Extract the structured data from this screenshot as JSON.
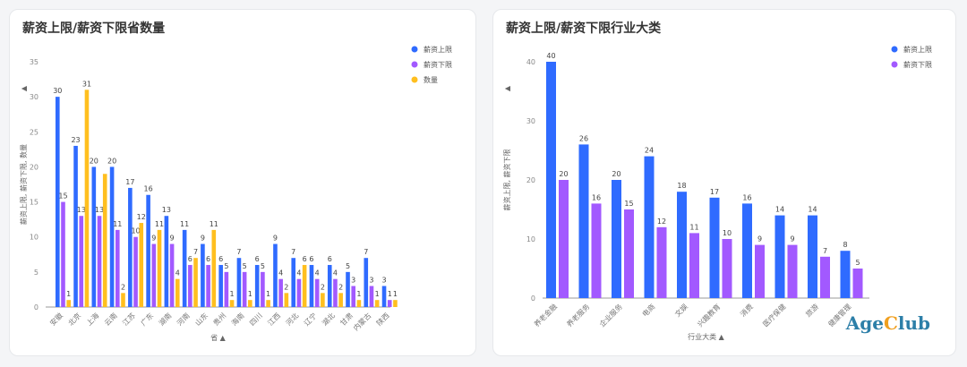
{
  "chart_data": [
    {
      "type": "bar",
      "title": "薪资上限/薪资下限省数量",
      "xlabel": "省",
      "ylabel": "薪资上限, 薪资下限, 数量",
      "ylim": [
        0,
        35
      ],
      "yticks": [
        0,
        5,
        10,
        15,
        20,
        25,
        30,
        35
      ],
      "legend": "top-right",
      "categories": [
        "安徽",
        "北京",
        "上海",
        "云南",
        "江苏",
        "广东",
        "湖南",
        "河南",
        "山东",
        "贵州",
        "海南",
        "四川",
        "江西",
        "河北",
        "辽宁",
        "湖北",
        "甘肃",
        "内蒙古",
        "陕西"
      ],
      "series": [
        {
          "name": "薪资上限",
          "color": "#2f6bff",
          "values": [
            30,
            23,
            20,
            20,
            17,
            16,
            13,
            11,
            9,
            6,
            7,
            6,
            9,
            7,
            6,
            6,
            5,
            7,
            3
          ]
        },
        {
          "name": "薪资下限",
          "color": "#a259ff",
          "values": [
            15,
            13,
            13,
            11,
            10,
            9,
            9,
            6,
            6,
            5,
            5,
            5,
            4,
            4,
            4,
            4,
            3,
            3,
            1
          ]
        },
        {
          "name": "数量",
          "color": "#ffbf1f",
          "values": [
            1,
            31,
            19,
            2,
            12,
            11,
            4,
            7,
            11,
            1,
            1,
            1,
            2,
            6,
            2,
            2,
            1,
            1,
            1
          ]
        }
      ],
      "label_values": {
        "薪资上限": [
          30,
          23,
          20,
          20,
          17,
          16,
          13,
          11,
          9,
          6,
          7,
          6,
          9,
          7,
          6,
          6,
          5,
          7,
          3
        ],
        "薪资下限": [
          15,
          13,
          13,
          11,
          10,
          9,
          9,
          6,
          6,
          5,
          5,
          5,
          4,
          4,
          4,
          4,
          3,
          3,
          1
        ],
        "数量": [
          1,
          31,
          null,
          2,
          12,
          11,
          4,
          7,
          11,
          1,
          1,
          1,
          2,
          6,
          2,
          2,
          1,
          1,
          1
        ]
      },
      "axis_indicator": "▲"
    },
    {
      "type": "bar",
      "title": "薪资上限/薪资下限行业大类",
      "xlabel": "行业大类",
      "ylabel": "薪资上限, 薪资下限",
      "ylim": [
        0,
        40
      ],
      "yticks": [
        0,
        10,
        20,
        30,
        40
      ],
      "legend": "top-right",
      "categories": [
        "养老金融",
        "养老服务",
        "企业服务",
        "电商",
        "文娱",
        "兴趣教育",
        "消费",
        "医疗保健",
        "旅游",
        "健康管理"
      ],
      "series": [
        {
          "name": "薪资上限",
          "color": "#2f6bff",
          "values": [
            40,
            26,
            20,
            24,
            18,
            17,
            16,
            14,
            14,
            8
          ]
        },
        {
          "name": "薪资下限",
          "color": "#a259ff",
          "values": [
            20,
            16,
            15,
            12,
            11,
            10,
            9,
            9,
            7,
            5
          ]
        }
      ],
      "axis_indicator": "▲"
    }
  ],
  "watermark": {
    "part1": "Age",
    "part2": "C",
    "part3": "lub"
  }
}
